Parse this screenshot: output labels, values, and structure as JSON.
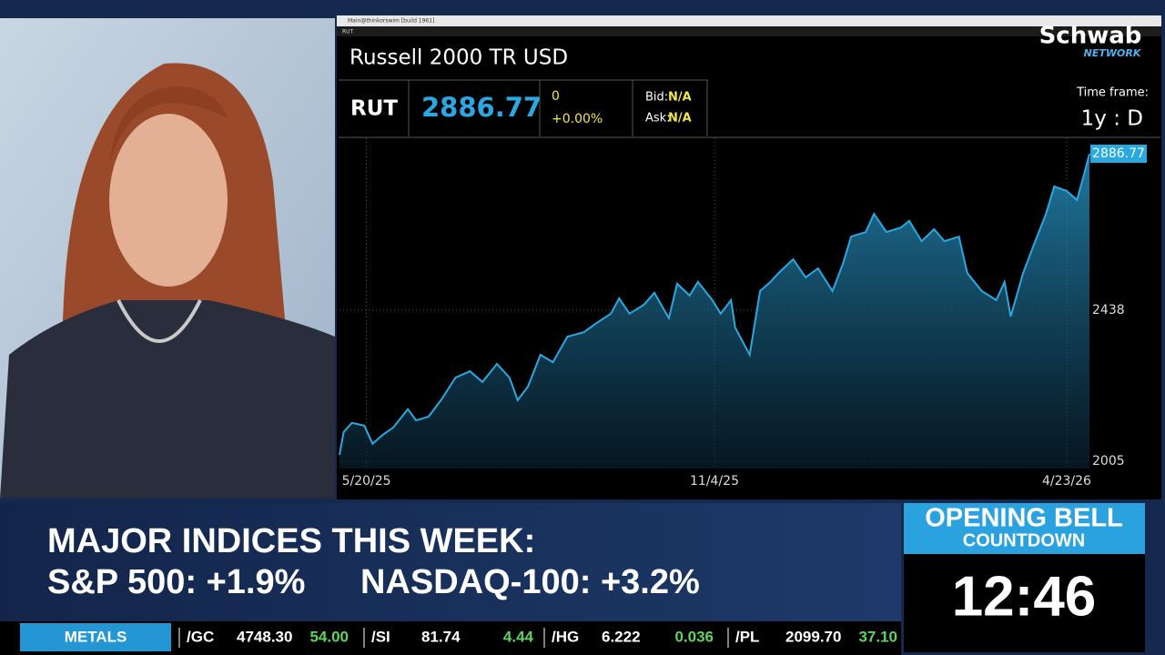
{
  "window": {
    "title": "Main@thinkorswim [build 1961]",
    "symbol_box": "RUT"
  },
  "brand": {
    "name": "Schwab",
    "sub": "NETWORK"
  },
  "quote": {
    "symbol": "RUT",
    "last": "2886.77",
    "change": "0",
    "change_pct": "+0.00%",
    "bid_label": "Bid:",
    "bid": "N/A",
    "ask_label": "Ask:",
    "ask": "N/A",
    "timeframe_label": "Time frame:",
    "timeframe": "1y : D"
  },
  "chart_data": {
    "type": "line",
    "title": "Russell 2000 TR USD",
    "x": [
      "2025-05-07",
      "2025-05-09",
      "2025-05-13",
      "2025-05-19",
      "2025-05-23",
      "2025-05-28",
      "2025-06-02",
      "2025-06-09",
      "2025-06-13",
      "2025-06-19",
      "2025-06-25",
      "2025-07-02",
      "2025-07-09",
      "2025-07-15",
      "2025-07-22",
      "2025-07-28",
      "2025-08-01",
      "2025-08-06",
      "2025-08-12",
      "2025-08-18",
      "2025-08-25",
      "2025-09-02",
      "2025-09-08",
      "2025-09-15",
      "2025-09-19",
      "2025-09-24",
      "2025-10-01",
      "2025-10-06",
      "2025-10-13",
      "2025-10-17",
      "2025-10-23",
      "2025-10-27",
      "2025-11-03",
      "2025-11-07",
      "2025-11-12",
      "2025-11-14",
      "2025-11-21",
      "2025-11-26",
      "2025-12-01",
      "2025-12-05",
      "2025-12-12",
      "2025-12-18",
      "2025-12-24",
      "2025-12-31",
      "2026-01-05",
      "2026-01-09",
      "2026-01-16",
      "2026-01-20",
      "2026-01-26",
      "2026-02-02",
      "2026-02-06",
      "2026-02-12",
      "2026-02-18",
      "2026-02-23",
      "2026-03-02",
      "2026-03-06",
      "2026-03-13",
      "2026-03-20",
      "2026-03-24",
      "2026-03-27",
      "2026-04-02",
      "2026-04-07",
      "2026-04-13",
      "2026-04-17",
      "2026-04-23",
      "2026-04-28",
      "2026-05-01",
      "2026-05-04"
    ],
    "series": [
      {
        "name": "RUT",
        "color": "#29a9e1",
        "values": [
          2023,
          2089,
          2115,
          2107,
          2055,
          2081,
          2102,
          2154,
          2122,
          2133,
          2180,
          2245,
          2263,
          2232,
          2284,
          2245,
          2180,
          2219,
          2310,
          2289,
          2362,
          2375,
          2401,
          2428,
          2472,
          2428,
          2454,
          2488,
          2415,
          2514,
          2480,
          2519,
          2467,
          2428,
          2467,
          2388,
          2310,
          2493,
          2519,
          2545,
          2584,
          2532,
          2558,
          2493,
          2571,
          2649,
          2662,
          2714,
          2662,
          2675,
          2694,
          2636,
          2670,
          2636,
          2649,
          2545,
          2493,
          2467,
          2519,
          2420,
          2545,
          2623,
          2714,
          2793,
          2780,
          2754,
          2819,
          2886.77
        ]
      }
    ],
    "xlim": [
      "2025-05-07",
      "2026-05-04"
    ],
    "xticks": [
      {
        "value": "2025-05-20",
        "label": "5/20/25"
      },
      {
        "value": "2025-11-04",
        "label": "11/4/25"
      },
      {
        "value": "2026-04-23",
        "label": "4/23/26"
      }
    ],
    "ylim": [
      1984,
      2931
    ],
    "yticks": [
      2005,
      2438
    ],
    "grid": true
  },
  "lower_third": {
    "headline": "MAJOR INDICES THIS WEEK:",
    "item1": "S&P 500: +1.9%",
    "item2": "NASDAQ-100: +3.2%"
  },
  "countdown": {
    "title": "OPENING BELL",
    "subtitle": "COUNTDOWN",
    "time": "12:46"
  },
  "ticker": {
    "section": "METALS",
    "items": [
      [
        "/GC",
        "4748.30",
        "54.00"
      ],
      [
        "/SI",
        "81.74",
        "4.44"
      ],
      [
        "/HG",
        "6.222",
        "0.036"
      ],
      [
        "/PL",
        "2099.70",
        "37.10"
      ]
    ]
  }
}
